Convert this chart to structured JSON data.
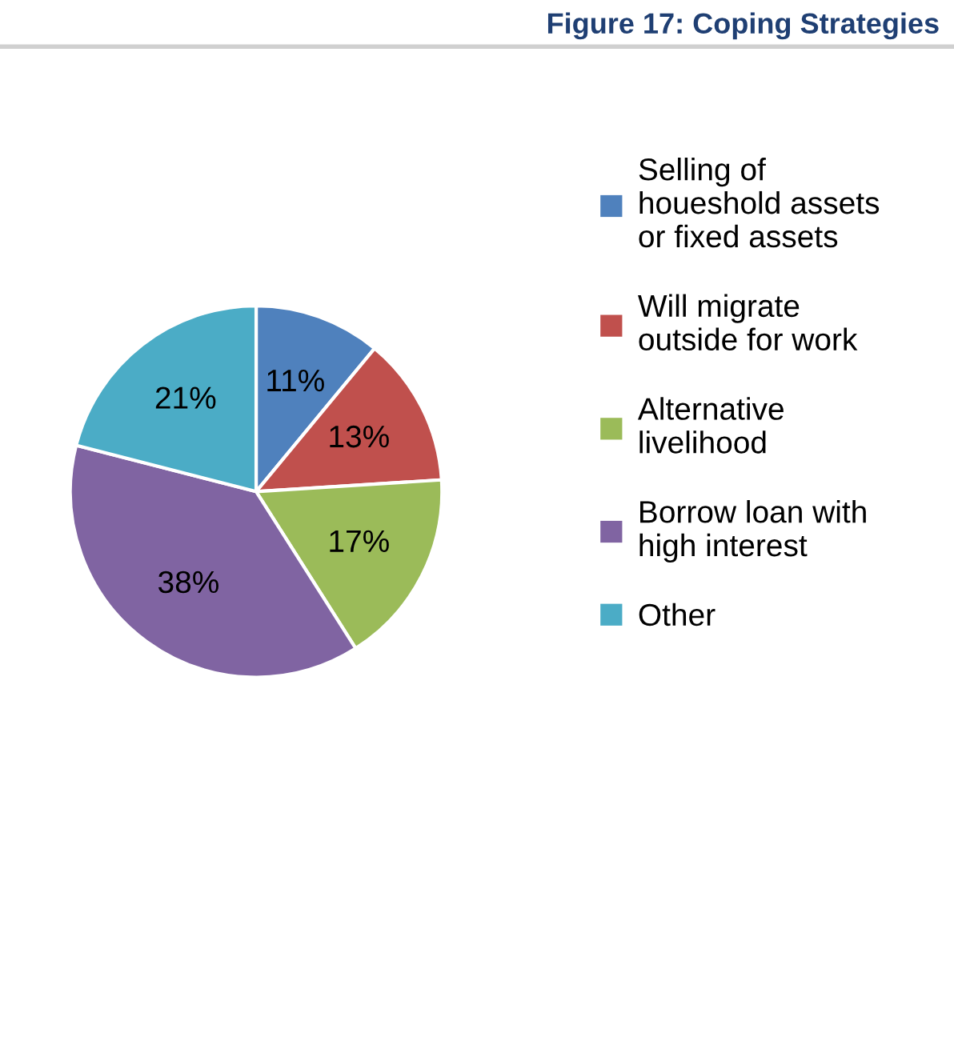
{
  "chart_data": {
    "type": "pie",
    "title": "Figure 17: Coping Strategies",
    "categories": [
      "Selling of\nhoueshold assets\nor fixed assets",
      "Will migrate\noutside for work",
      "Alternative\nlivelihood",
      "Borrow loan with\nhigh interest",
      "Other"
    ],
    "values": [
      11,
      13,
      17,
      38,
      21
    ],
    "colors": [
      "#4f81bd",
      "#c0504d",
      "#9bbb59",
      "#8064a2",
      "#4bacc6"
    ],
    "value_labels": [
      "11%",
      "13%",
      "17%",
      "38%",
      "21%"
    ],
    "legend": "right"
  }
}
